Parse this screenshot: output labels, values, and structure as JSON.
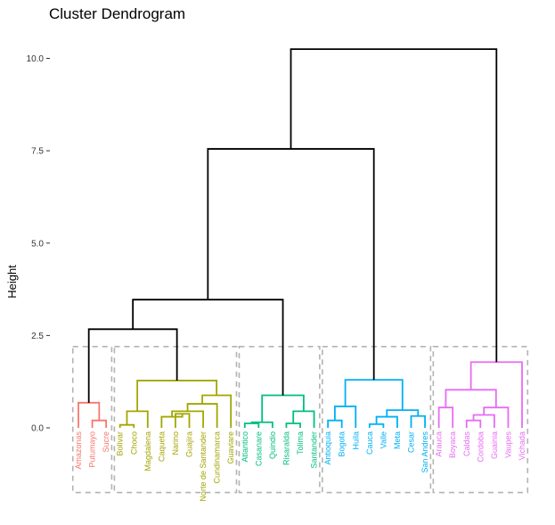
{
  "chart_data": {
    "type": "dendrogram",
    "title": "Cluster Dendrogram",
    "ylabel": "Height",
    "xlabel": "",
    "ylim": [
      -1.75,
      10.5
    ],
    "yticks": [
      0.0,
      2.5,
      5.0,
      7.5,
      10.0
    ],
    "ytick_labels": [
      "0.0",
      "2.5",
      "5.0",
      "7.5",
      "10.0"
    ],
    "cut_height": 2.2,
    "grid": false,
    "colors": {
      "red": "#F8766D",
      "olive": "#A3A500",
      "green": "#00BF7D",
      "blue": "#00B0F6",
      "magenta": "#E76BF3",
      "root": "#000000",
      "box": "#b3b3b3"
    },
    "leaves": [
      {
        "label": "Amazonas",
        "cluster": "red"
      },
      {
        "label": "Putumayo",
        "cluster": "red"
      },
      {
        "label": "Sucre",
        "cluster": "red"
      },
      {
        "label": "Bolivar",
        "cluster": "olive"
      },
      {
        "label": "Choco",
        "cluster": "olive"
      },
      {
        "label": "Magdalena",
        "cluster": "olive"
      },
      {
        "label": "Caqueta",
        "cluster": "olive"
      },
      {
        "label": "Narino",
        "cluster": "olive"
      },
      {
        "label": "Guajira",
        "cluster": "olive"
      },
      {
        "label": "Norte de Santander",
        "cluster": "olive"
      },
      {
        "label": "Cundinamarca",
        "cluster": "olive"
      },
      {
        "label": "Guaviare",
        "cluster": "olive"
      },
      {
        "label": "Atlantico",
        "cluster": "green"
      },
      {
        "label": "Casanare",
        "cluster": "green"
      },
      {
        "label": "Quindio",
        "cluster": "green"
      },
      {
        "label": "Risaralda",
        "cluster": "green"
      },
      {
        "label": "Tolima",
        "cluster": "green"
      },
      {
        "label": "Santander",
        "cluster": "green"
      },
      {
        "label": "Antioquia",
        "cluster": "blue"
      },
      {
        "label": "Bogota",
        "cluster": "blue"
      },
      {
        "label": "Huila",
        "cluster": "blue"
      },
      {
        "label": "Cauca",
        "cluster": "blue"
      },
      {
        "label": "Valle",
        "cluster": "blue"
      },
      {
        "label": "Meta",
        "cluster": "blue"
      },
      {
        "label": "Cesar",
        "cluster": "blue"
      },
      {
        "label": "San Andres",
        "cluster": "blue"
      },
      {
        "label": "Arauca",
        "cluster": "magenta"
      },
      {
        "label": "Boyaca",
        "cluster": "magenta"
      },
      {
        "label": "Caldas",
        "cluster": "magenta"
      },
      {
        "label": "Cordoba",
        "cluster": "magenta"
      },
      {
        "label": "Guainia",
        "cluster": "magenta"
      },
      {
        "label": "Vaupes",
        "cluster": "magenta"
      },
      {
        "label": "Vichada",
        "cluster": "magenta"
      }
    ],
    "merges": [
      {
        "id": "r1",
        "left": "Putumayo",
        "right": "Sucre",
        "height": 0.2,
        "cluster": "red"
      },
      {
        "id": "r2",
        "left": "Amazonas",
        "right": "r1",
        "height": 0.68,
        "cluster": "red"
      },
      {
        "id": "o1",
        "left": "Bolivar",
        "right": "Choco",
        "height": 0.08,
        "cluster": "olive"
      },
      {
        "id": "o2",
        "left": "o1",
        "right": "Magdalena",
        "height": 0.45,
        "cluster": "olive"
      },
      {
        "id": "o3",
        "left": "Narino",
        "right": "Guajira",
        "height": 0.38,
        "cluster": "olive"
      },
      {
        "id": "o4",
        "left": "Caqueta",
        "right": "o3",
        "height": 0.3,
        "cluster": "olive"
      },
      {
        "id": "o5",
        "left": "o4",
        "right": "Norte de Santander",
        "height": 0.45,
        "cluster": "olive"
      },
      {
        "id": "o6",
        "left": "o5",
        "right": "Cundinamarca",
        "height": 0.65,
        "cluster": "olive"
      },
      {
        "id": "o7",
        "left": "o6",
        "right": "Guaviare",
        "height": 0.88,
        "cluster": "olive"
      },
      {
        "id": "o8",
        "left": "o2",
        "right": "o7",
        "height": 1.28,
        "cluster": "olive"
      },
      {
        "id": "g1",
        "left": "Atlantico",
        "right": "Casanare",
        "height": 0.12,
        "cluster": "green"
      },
      {
        "id": "g2",
        "left": "g1",
        "right": "Quindio",
        "height": 0.15,
        "cluster": "green"
      },
      {
        "id": "g3",
        "left": "Risaralda",
        "right": "Tolima",
        "height": 0.12,
        "cluster": "green"
      },
      {
        "id": "g4",
        "left": "g3",
        "right": "Santander",
        "height": 0.45,
        "cluster": "green"
      },
      {
        "id": "g5",
        "left": "g2",
        "right": "g4",
        "height": 0.88,
        "cluster": "green"
      },
      {
        "id": "b1",
        "left": "Antioquia",
        "right": "Bogota",
        "height": 0.2,
        "cluster": "blue"
      },
      {
        "id": "b2",
        "left": "b1",
        "right": "Huila",
        "height": 0.58,
        "cluster": "blue"
      },
      {
        "id": "b3",
        "left": "Cauca",
        "right": "Valle",
        "height": 0.1,
        "cluster": "blue"
      },
      {
        "id": "b4",
        "left": "b3",
        "right": "Meta",
        "height": 0.3,
        "cluster": "blue"
      },
      {
        "id": "b5",
        "left": "Cesar",
        "right": "San Andres",
        "height": 0.32,
        "cluster": "blue"
      },
      {
        "id": "b6",
        "left": "b4",
        "right": "b5",
        "height": 0.48,
        "cluster": "blue"
      },
      {
        "id": "b7",
        "left": "b2",
        "right": "b6",
        "height": 1.3,
        "cluster": "blue"
      },
      {
        "id": "m1",
        "left": "Arauca",
        "right": "Boyaca",
        "height": 0.55,
        "cluster": "magenta"
      },
      {
        "id": "m2",
        "left": "Caldas",
        "right": "Cordoba",
        "height": 0.2,
        "cluster": "magenta"
      },
      {
        "id": "m3",
        "left": "m2",
        "right": "Guainia",
        "height": 0.35,
        "cluster": "magenta"
      },
      {
        "id": "m4",
        "left": "m3",
        "right": "Vaupes",
        "height": 0.55,
        "cluster": "magenta"
      },
      {
        "id": "m5",
        "left": "m1",
        "right": "m4",
        "height": 1.03,
        "cluster": "magenta"
      },
      {
        "id": "m6",
        "left": "m5",
        "right": "Vichada",
        "height": 1.78,
        "cluster": "magenta"
      },
      {
        "id": "n1",
        "left": "r2",
        "right": "o8",
        "height": 2.67,
        "cluster": "root"
      },
      {
        "id": "n2",
        "left": "n1",
        "right": "g5",
        "height": 3.47,
        "cluster": "root"
      },
      {
        "id": "n3",
        "left": "n2",
        "right": "b7",
        "height": 7.55,
        "cluster": "root"
      },
      {
        "id": "n4",
        "left": "n3",
        "right": "m6",
        "height": 10.25,
        "cluster": "root"
      }
    ],
    "cluster_boxes": [
      {
        "first": "Amazonas",
        "last": "Sucre"
      },
      {
        "first": "Bolivar",
        "last": "Guaviare"
      },
      {
        "first": "Atlantico",
        "last": "Santander"
      },
      {
        "first": "Antioquia",
        "last": "San Andres"
      },
      {
        "first": "Arauca",
        "last": "Vichada"
      }
    ]
  }
}
